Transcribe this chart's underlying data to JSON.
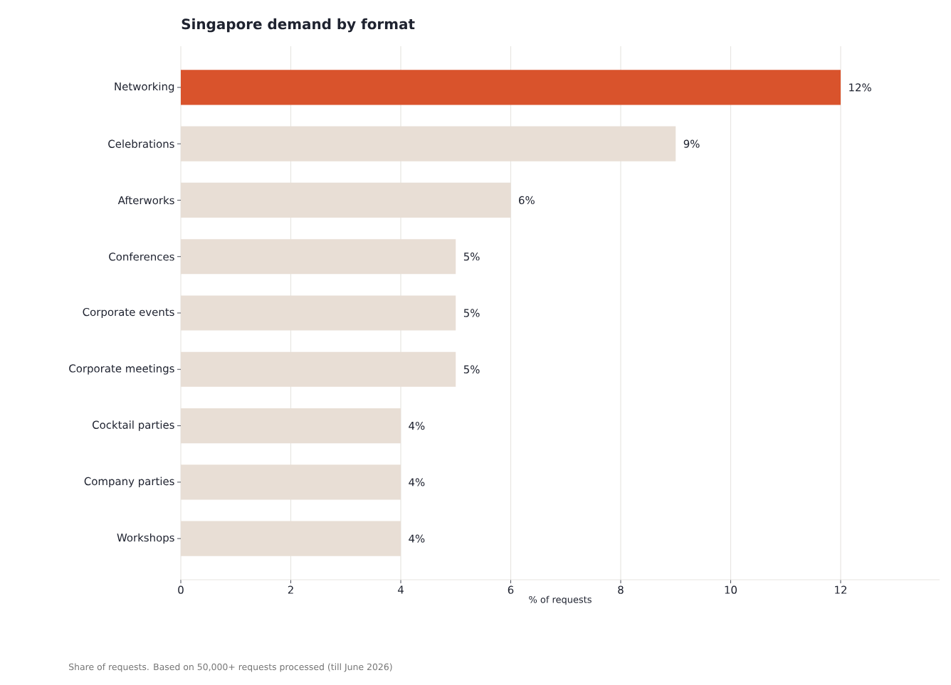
{
  "chart_data": {
    "type": "bar",
    "orientation": "horizontal",
    "title": "Singapore demand by format",
    "xlabel": "% of requests",
    "categories": [
      "Networking",
      "Celebrations",
      "Afterworks",
      "Conferences",
      "Corporate events",
      "Corporate meetings",
      "Cocktail parties",
      "Company parties",
      "Workshops"
    ],
    "values": [
      12,
      9,
      6,
      5,
      5,
      5,
      4,
      4,
      4
    ],
    "value_labels": [
      "12%",
      "9%",
      "6%",
      "5%",
      "5%",
      "5%",
      "4%",
      "4%",
      "4%"
    ],
    "colors": [
      "#d9532c",
      "#e8ded5",
      "#e8ded5",
      "#e8ded5",
      "#e8ded5",
      "#e8ded5",
      "#e8ded5",
      "#e8ded5",
      "#e8ded5"
    ],
    "xlim": [
      0,
      13.8
    ],
    "xticks": [
      0,
      2,
      4,
      6,
      8,
      10,
      12
    ],
    "grid": "x",
    "annotations": [
      "Share of requests. Based on 50,000+ requests processed (till June 2026)"
    ]
  }
}
